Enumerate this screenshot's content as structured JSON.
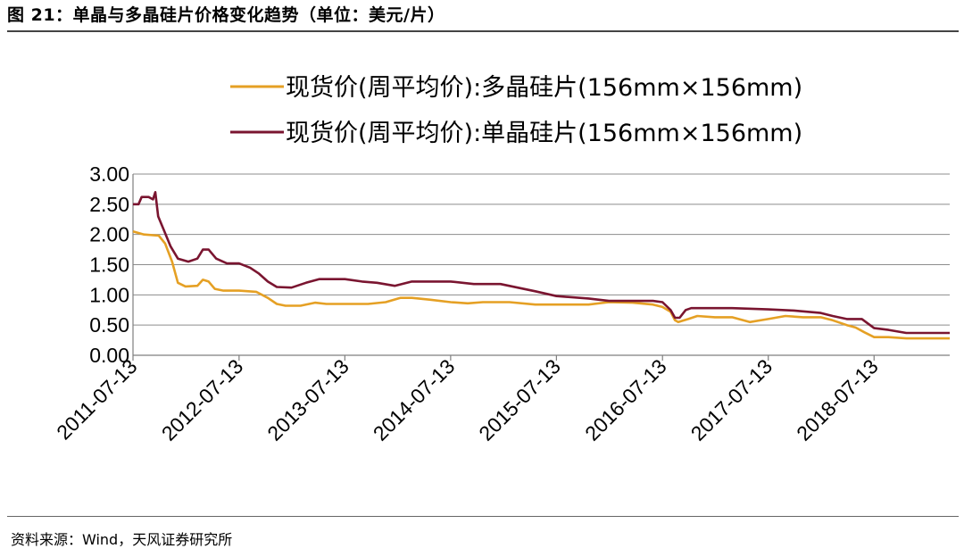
{
  "figure": {
    "title": "图 21：单晶与多晶硅片价格变化趋势（单位：美元/片）",
    "source": "资料来源：Wind，天风证券研究所"
  },
  "chart_data": {
    "type": "line",
    "title": "",
    "xlabel": "",
    "ylabel": "",
    "ylim": [
      0,
      3
    ],
    "yticks": [
      "0.00",
      "0.50",
      "1.00",
      "1.50",
      "2.00",
      "2.50",
      "3.00"
    ],
    "xlim": [
      "2011-07-13",
      "2019-03-31"
    ],
    "xticks": [
      "2011-07-13",
      "2012-07-13",
      "2013-07-13",
      "2014-07-13",
      "2015-07-13",
      "2016-07-13",
      "2017-07-13",
      "2018-07-13"
    ],
    "grid": "horizontal",
    "legend_position": "top",
    "series": [
      {
        "name": "现货价(周平均价):多晶硅片(156mm×156mm)",
        "color": "#E5A024",
        "points": [
          [
            "2011-07-13",
            2.05
          ],
          [
            "2011-08-20",
            2.0
          ],
          [
            "2011-10-10",
            1.98
          ],
          [
            "2011-11-01",
            1.85
          ],
          [
            "2011-11-25",
            1.55
          ],
          [
            "2011-12-15",
            1.2
          ],
          [
            "2012-01-10",
            1.14
          ],
          [
            "2012-02-20",
            1.15
          ],
          [
            "2012-03-10",
            1.25
          ],
          [
            "2012-03-30",
            1.22
          ],
          [
            "2012-04-20",
            1.1
          ],
          [
            "2012-05-20",
            1.07
          ],
          [
            "2012-07-13",
            1.07
          ],
          [
            "2012-09-10",
            1.05
          ],
          [
            "2012-10-20",
            0.95
          ],
          [
            "2012-11-20",
            0.85
          ],
          [
            "2012-12-20",
            0.82
          ],
          [
            "2013-02-10",
            0.82
          ],
          [
            "2013-04-01",
            0.87
          ],
          [
            "2013-05-10",
            0.85
          ],
          [
            "2013-07-13",
            0.85
          ],
          [
            "2013-10-01",
            0.85
          ],
          [
            "2013-12-01",
            0.88
          ],
          [
            "2014-01-20",
            0.95
          ],
          [
            "2014-03-01",
            0.95
          ],
          [
            "2014-05-01",
            0.92
          ],
          [
            "2014-07-13",
            0.88
          ],
          [
            "2014-09-10",
            0.86
          ],
          [
            "2014-11-01",
            0.88
          ],
          [
            "2015-02-01",
            0.88
          ],
          [
            "2015-05-01",
            0.84
          ],
          [
            "2015-07-13",
            0.84
          ],
          [
            "2015-11-01",
            0.84
          ],
          [
            "2016-01-10",
            0.88
          ],
          [
            "2016-04-01",
            0.87
          ],
          [
            "2016-06-10",
            0.84
          ],
          [
            "2016-07-13",
            0.8
          ],
          [
            "2016-08-10",
            0.72
          ],
          [
            "2016-08-25",
            0.58
          ],
          [
            "2016-09-05",
            0.55
          ],
          [
            "2016-10-10",
            0.6
          ],
          [
            "2016-11-10",
            0.65
          ],
          [
            "2017-01-10",
            0.63
          ],
          [
            "2017-03-10",
            0.63
          ],
          [
            "2017-05-10",
            0.55
          ],
          [
            "2017-07-13",
            0.6
          ],
          [
            "2017-09-10",
            0.65
          ],
          [
            "2017-11-10",
            0.63
          ],
          [
            "2018-01-10",
            0.63
          ],
          [
            "2018-02-20",
            0.58
          ],
          [
            "2018-04-10",
            0.5
          ],
          [
            "2018-05-10",
            0.46
          ],
          [
            "2018-06-10",
            0.38
          ],
          [
            "2018-07-13",
            0.3
          ],
          [
            "2018-09-01",
            0.3
          ],
          [
            "2018-11-01",
            0.28
          ],
          [
            "2019-03-31",
            0.28
          ]
        ]
      },
      {
        "name": "现货价(周平均价):单晶硅片(156mm×156mm)",
        "color": "#7A1530",
        "points": [
          [
            "2011-07-13",
            2.5
          ],
          [
            "2011-08-01",
            2.5
          ],
          [
            "2011-08-12",
            2.62
          ],
          [
            "2011-09-05",
            2.62
          ],
          [
            "2011-09-20",
            2.58
          ],
          [
            "2011-09-28",
            2.7
          ],
          [
            "2011-10-08",
            2.3
          ],
          [
            "2011-10-25",
            2.1
          ],
          [
            "2011-11-20",
            1.8
          ],
          [
            "2011-12-15",
            1.6
          ],
          [
            "2012-01-20",
            1.55
          ],
          [
            "2012-02-20",
            1.6
          ],
          [
            "2012-03-10",
            1.75
          ],
          [
            "2012-03-30",
            1.75
          ],
          [
            "2012-04-25",
            1.6
          ],
          [
            "2012-06-01",
            1.52
          ],
          [
            "2012-07-13",
            1.52
          ],
          [
            "2012-08-20",
            1.45
          ],
          [
            "2012-09-20",
            1.35
          ],
          [
            "2012-10-20",
            1.22
          ],
          [
            "2012-11-20",
            1.13
          ],
          [
            "2013-01-10",
            1.12
          ],
          [
            "2013-03-01",
            1.2
          ],
          [
            "2013-04-15",
            1.26
          ],
          [
            "2013-07-13",
            1.26
          ],
          [
            "2013-09-10",
            1.22
          ],
          [
            "2013-11-01",
            1.2
          ],
          [
            "2014-01-01",
            1.15
          ],
          [
            "2014-03-01",
            1.22
          ],
          [
            "2014-07-13",
            1.22
          ],
          [
            "2014-10-01",
            1.18
          ],
          [
            "2015-01-01",
            1.18
          ],
          [
            "2015-03-01",
            1.12
          ],
          [
            "2015-05-01",
            1.06
          ],
          [
            "2015-07-13",
            0.98
          ],
          [
            "2015-11-01",
            0.94
          ],
          [
            "2016-01-10",
            0.9
          ],
          [
            "2016-04-01",
            0.9
          ],
          [
            "2016-06-10",
            0.9
          ],
          [
            "2016-07-13",
            0.88
          ],
          [
            "2016-08-10",
            0.75
          ],
          [
            "2016-08-25",
            0.62
          ],
          [
            "2016-09-10",
            0.62
          ],
          [
            "2016-10-01",
            0.75
          ],
          [
            "2016-10-20",
            0.78
          ],
          [
            "2017-01-10",
            0.78
          ],
          [
            "2017-03-10",
            0.78
          ],
          [
            "2017-07-13",
            0.76
          ],
          [
            "2017-10-10",
            0.74
          ],
          [
            "2018-01-10",
            0.7
          ],
          [
            "2018-02-20",
            0.65
          ],
          [
            "2018-04-10",
            0.6
          ],
          [
            "2018-06-01",
            0.6
          ],
          [
            "2018-07-13",
            0.45
          ],
          [
            "2018-09-01",
            0.42
          ],
          [
            "2018-11-01",
            0.37
          ],
          [
            "2018-12-15",
            0.37
          ],
          [
            "2019-03-31",
            0.37
          ]
        ]
      }
    ]
  }
}
